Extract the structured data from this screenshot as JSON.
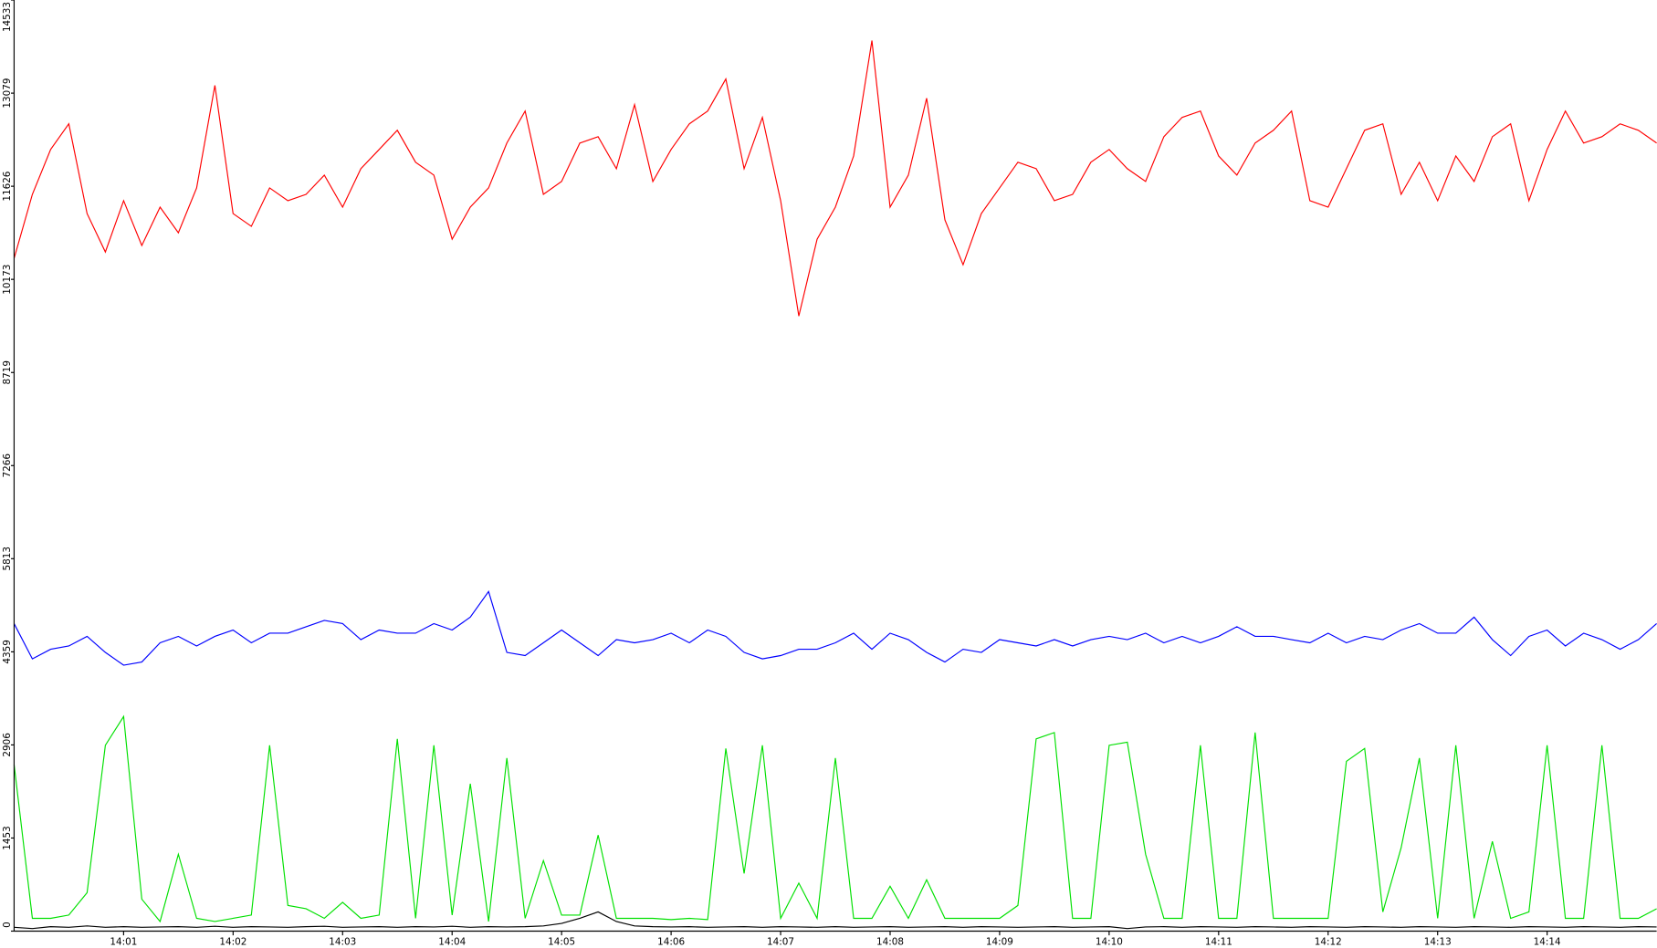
{
  "chart_data": {
    "type": "line",
    "categories": [
      null,
      null,
      null,
      null,
      null,
      null,
      "14:01",
      null,
      null,
      null,
      null,
      null,
      "14:02",
      null,
      null,
      null,
      null,
      null,
      "14:03",
      null,
      null,
      null,
      null,
      null,
      "14:04",
      null,
      null,
      null,
      null,
      null,
      "14:05",
      null,
      null,
      null,
      null,
      null,
      "14:06",
      null,
      null,
      null,
      null,
      null,
      "14:07",
      null,
      null,
      null,
      null,
      null,
      "14:08",
      null,
      null,
      null,
      null,
      null,
      "14:09",
      null,
      null,
      null,
      null,
      null,
      "14:10",
      null,
      null,
      null,
      null,
      null,
      "14:11",
      null,
      null,
      null,
      null,
      null,
      "14:12",
      null,
      null,
      null,
      null,
      null,
      "14:13",
      null,
      null,
      null,
      null,
      null,
      "14:14",
      null,
      null,
      null,
      null,
      null,
      null
    ],
    "ylim": [
      0,
      14533
    ],
    "yticks": [
      0,
      1453,
      2906,
      4359,
      5813,
      7266,
      8719,
      10173,
      11626,
      13079,
      14533
    ],
    "series": [
      {
        "color": "#ff0000",
        "values": [
          10500,
          11500,
          12200,
          12600,
          11200,
          10600,
          11400,
          10700,
          11300,
          10900,
          11600,
          13200,
          11200,
          11000,
          11600,
          11400,
          11500,
          11800,
          11300,
          11900,
          12200,
          12500,
          12000,
          11800,
          10800,
          11300,
          11600,
          12300,
          12800,
          11500,
          11700,
          12300,
          12400,
          11900,
          12900,
          11700,
          12200,
          12600,
          12800,
          13300,
          11900,
          12700,
          11400,
          9600,
          10800,
          11300,
          12100,
          13900,
          11300,
          11800,
          13000,
          11100,
          10400,
          11200,
          11600,
          12000,
          11900,
          11400,
          11500,
          12000,
          12200,
          11900,
          11700,
          12400,
          12700,
          12800,
          12100,
          11800,
          12300,
          12500,
          12800,
          11400,
          11300,
          11900,
          12500,
          12600,
          11500,
          12000,
          11400,
          12100,
          11700,
          12400,
          12600,
          11400,
          12200,
          12800,
          12300,
          12400,
          12600,
          12500,
          12300
        ]
      },
      {
        "color": "#0000ff",
        "values": [
          4800,
          4250,
          4400,
          4450,
          4600,
          4350,
          4150,
          4200,
          4500,
          4600,
          4450,
          4600,
          4700,
          4500,
          4650,
          4650,
          4750,
          4850,
          4800,
          4550,
          4700,
          4650,
          4650,
          4800,
          4700,
          4900,
          5300,
          4350,
          4300,
          4500,
          4700,
          4500,
          4300,
          4550,
          4500,
          4550,
          4650,
          4500,
          4700,
          4600,
          4350,
          4250,
          4300,
          4400,
          4400,
          4500,
          4650,
          4400,
          4650,
          4550,
          4350,
          4200,
          4400,
          4350,
          4550,
          4500,
          4450,
          4550,
          4450,
          4550,
          4600,
          4550,
          4650,
          4500,
          4600,
          4500,
          4600,
          4750,
          4600,
          4600,
          4550,
          4500,
          4650,
          4500,
          4600,
          4550,
          4700,
          4800,
          4650,
          4650,
          4900,
          4550,
          4300,
          4600,
          4700,
          4450,
          4650,
          4550,
          4400,
          4550,
          4800
        ]
      },
      {
        "color": "#00e000",
        "values": [
          2600,
          200,
          200,
          250,
          600,
          2900,
          3350,
          500,
          150,
          1200,
          200,
          150,
          200,
          250,
          2900,
          400,
          350,
          200,
          450,
          200,
          250,
          3000,
          200,
          2900,
          250,
          2300,
          150,
          2700,
          200,
          1100,
          250,
          250,
          1500,
          200,
          200,
          200,
          180,
          200,
          180,
          2850,
          900,
          2900,
          200,
          750,
          200,
          2700,
          200,
          200,
          700,
          200,
          800,
          200,
          200,
          200,
          200,
          400,
          3000,
          3100,
          200,
          200,
          2900,
          2950,
          1200,
          200,
          200,
          2900,
          200,
          200,
          3100,
          200,
          200,
          200,
          200,
          2650,
          2850,
          300,
          1300,
          2700,
          200,
          2900,
          200,
          1400,
          200,
          300,
          2900,
          200,
          200,
          2900,
          200,
          200,
          350
        ]
      },
      {
        "color": "#000000",
        "values": [
          60,
          40,
          70,
          60,
          80,
          60,
          70,
          60,
          65,
          70,
          60,
          75,
          60,
          70,
          65,
          60,
          70,
          75,
          60,
          65,
          70,
          60,
          70,
          65,
          75,
          60,
          70,
          65,
          70,
          80,
          120,
          200,
          300,
          150,
          80,
          70,
          65,
          70,
          60,
          65,
          70,
          60,
          70,
          65,
          60,
          70,
          60,
          65,
          70,
          60,
          65,
          70,
          60,
          70,
          65,
          60,
          65,
          70,
          60,
          65,
          70,
          40,
          65,
          70,
          60,
          70,
          65,
          60,
          70,
          65,
          60,
          70,
          65,
          60,
          70,
          65,
          60,
          70,
          65,
          60,
          70,
          65,
          60,
          70,
          65,
          60,
          70,
          65,
          60,
          70,
          65
        ]
      }
    ]
  }
}
